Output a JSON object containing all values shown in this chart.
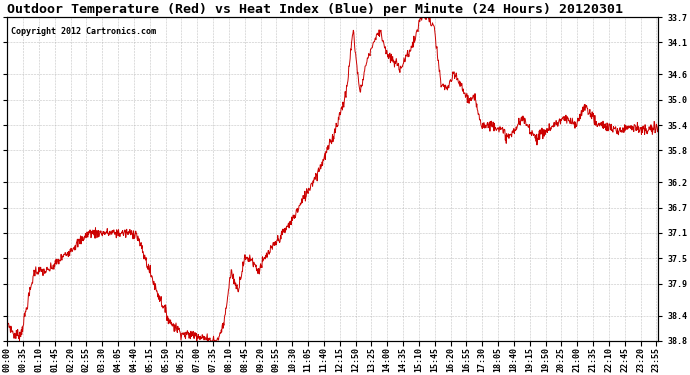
{
  "title": "Outdoor Temperature (Red) vs Heat Index (Blue) per Minute (24 Hours) 20120301",
  "copyright": "Copyright 2012 Cartronics.com",
  "ylabel_right": [
    "38.8",
    "38.4",
    "37.9",
    "37.5",
    "37.1",
    "36.7",
    "36.2",
    "35.8",
    "35.4",
    "35.0",
    "34.6",
    "34.1",
    "33.7"
  ],
  "ylim": [
    33.7,
    38.8
  ],
  "yticks": [
    33.7,
    34.1,
    34.6,
    35.0,
    35.4,
    35.8,
    36.2,
    36.7,
    37.1,
    37.5,
    37.9,
    38.4,
    38.8
  ],
  "line_color": "#cc0000",
  "background_color": "#ffffff",
  "grid_color": "#aaaaaa",
  "title_fontsize": 9.5,
  "copyright_fontsize": 6,
  "tick_fontsize": 6,
  "xtick_labels": [
    "00:00",
    "00:35",
    "01:10",
    "01:45",
    "02:20",
    "02:55",
    "03:30",
    "04:05",
    "04:40",
    "05:15",
    "05:50",
    "06:25",
    "07:00",
    "07:35",
    "08:10",
    "08:45",
    "09:20",
    "09:55",
    "10:30",
    "11:05",
    "11:40",
    "12:15",
    "12:50",
    "13:25",
    "14:00",
    "14:35",
    "15:10",
    "15:45",
    "16:20",
    "16:55",
    "17:30",
    "18:05",
    "18:40",
    "19:15",
    "19:50",
    "20:25",
    "21:00",
    "21:35",
    "22:10",
    "22:45",
    "23:20",
    "23:55"
  ]
}
